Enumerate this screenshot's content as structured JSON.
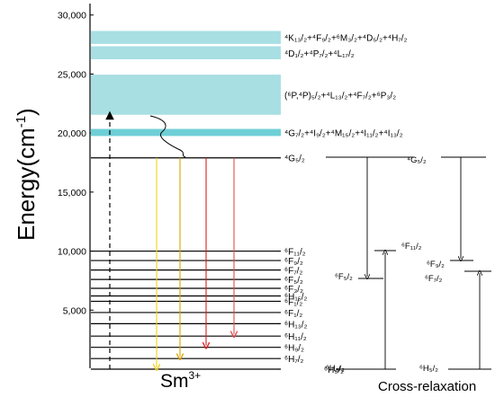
{
  "axis": {
    "ylabel_main": "Energy(cm",
    "ylabel_sup": "-1",
    "ylabel_close": ")",
    "ticks": [
      {
        "value": 5000,
        "label": "5,000"
      },
      {
        "value": 10000,
        "label": "10,000"
      },
      {
        "value": 15000,
        "label": "15,000"
      },
      {
        "value": 20000,
        "label": "20,000"
      },
      {
        "value": 25000,
        "label": "25,000"
      },
      {
        "value": 30000,
        "label": "30,000"
      }
    ],
    "xlabel_main": "Sm",
    "xlabel_sup": "3+"
  },
  "bands": [
    {
      "from": 28650,
      "to": 27550,
      "base": "K13/2+F9/2+M3/2+D5/2+H7/2",
      "text": "⁴K₁₃/₂+⁴F₉/₂+⁶M₃/₂+⁴D₅/₂+⁴H₇/₂"
    },
    {
      "from": 27350,
      "to": 26250,
      "base": "D1/2+P7/2+L17/2",
      "text": "⁴D₁/₂+⁴P₇/₂+⁴L₁₇/₂"
    },
    {
      "from": 24950,
      "to": 21550,
      "base": "(P,P)5/2+L13/2+F7/2+P3/2",
      "text": "(⁶P,⁴P)₅/₂+⁴L₁₃/₂+⁴F₇/₂+⁶P₃/₂"
    },
    {
      "from": 20350,
      "to": 19750,
      "base": "G7/2+I9/2+M15/2+I11/2+I13/2",
      "text": "⁴G₇/₂+⁴I₉/₂+⁴M₁₅/₂+⁴I₁₁/₂+⁴I₁₃/₂"
    }
  ],
  "levels": [
    {
      "energy": 17900,
      "text": "⁴G₅/₂"
    },
    {
      "energy": 10000,
      "text": "⁶F₁₁/₂"
    },
    {
      "energy": 9200,
      "text": "⁶F₉/₂"
    },
    {
      "energy": 8400,
      "text": "⁶F₇/₂"
    },
    {
      "energy": 7600,
      "text": "⁶F₅/₂"
    },
    {
      "energy": 6850,
      "text": "⁶F₃/₂"
    },
    {
      "energy": 6200,
      "text": "⁶H₁₅/₂"
    },
    {
      "energy": 5750,
      "text": "⁶F₁/₂"
    },
    {
      "energy": 4800,
      "text": "⁶F₁/₂"
    },
    {
      "energy": 3850,
      "text": "⁶H₁₃/₂"
    },
    {
      "energy": 2800,
      "text": "⁶H₁₁/₂"
    },
    {
      "energy": 1850,
      "text": "⁶H₉/₂"
    },
    {
      "energy": 900,
      "text": "⁶H₇/₂"
    },
    {
      "energy": 0,
      "text": "⁶H₅/₂"
    }
  ],
  "excitation": {
    "from": 0,
    "to": 21800,
    "color": "#000000"
  },
  "emissions": [
    {
      "to": 0,
      "color": "#f2d21a"
    },
    {
      "to": 900,
      "color": "#d9a400"
    },
    {
      "to": 1850,
      "color": "#d81e1e"
    },
    {
      "to": 2800,
      "color": "#e24a4a"
    }
  ],
  "cross_relaxation": {
    "title": "Cross-relaxation",
    "pair1": {
      "top": "⁴G₅/₂",
      "mid_down": "⁶F₅/₂",
      "mid_up": "⁶F₁₁/₂",
      "ground": "⁶H₅/₂"
    },
    "pair2": {
      "top": "⁴G₅/₂",
      "mid_down": "⁶F₉/₂",
      "mid_up": "⁶F₇/₂",
      "ground": "⁶H₅/₂"
    }
  },
  "colors": {
    "band": "#a8dfe3",
    "band_dark": "#6fcfd6",
    "line": "#000000"
  }
}
